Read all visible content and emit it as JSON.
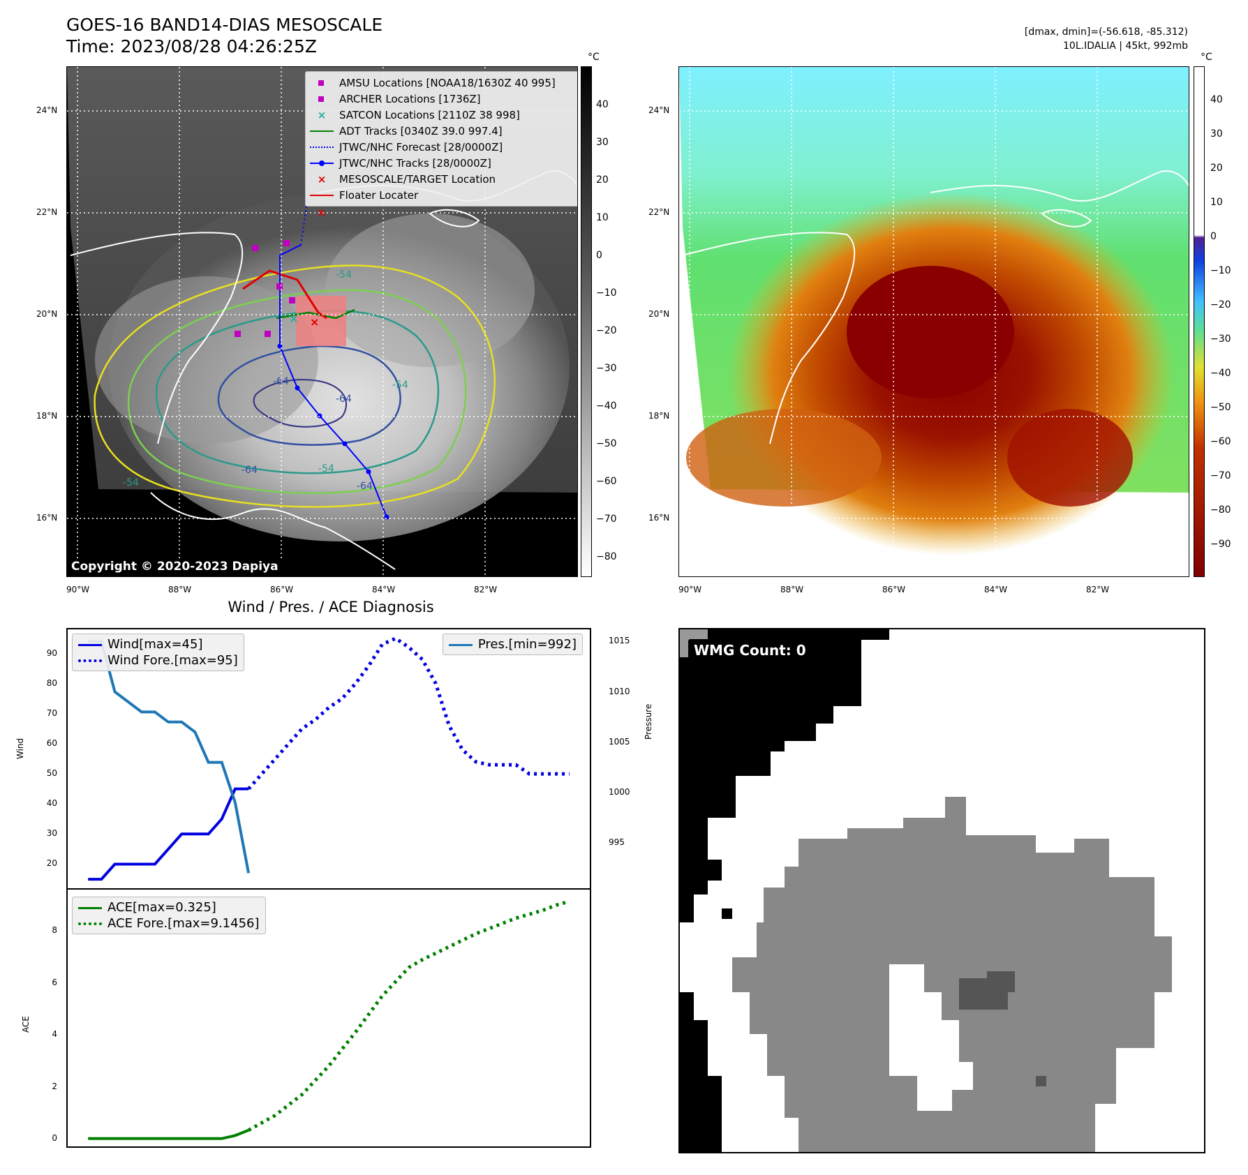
{
  "header": {
    "title_line1": "GOES-16 BAND14-DIAS MESOSCALE",
    "title_line2": "Time: 2023/08/28 04:26:25Z",
    "right_line1": "[dmax, dmin]=(-56.618, -85.312)",
    "right_line2": "10L.IDALIA | 45kt, 992mb"
  },
  "map_panel": {
    "lat_labels": [
      "24°N",
      "22°N",
      "20°N",
      "18°N",
      "16°N"
    ],
    "lon_labels": [
      "90°W",
      "88°W",
      "86°W",
      "84°W",
      "82°W"
    ],
    "copyright": "Copyright © 2020-2023 Dapiya",
    "contour_labels": [
      "-54",
      "-64",
      "-54",
      "-64",
      "-64",
      "-54",
      "-64",
      "-54"
    ],
    "legend": [
      {
        "label": "AMSU Locations [NOAA18/1630Z 40 995]",
        "color": "#c000c0",
        "symbol": "square"
      },
      {
        "label": "ARCHER Locations [1736Z]",
        "color": "#c000c0",
        "symbol": "square"
      },
      {
        "label": "SATCON Locations [2110Z 38 998]",
        "color": "#20b0a0",
        "symbol": "x"
      },
      {
        "label": "ADT Tracks [0340Z 39.0 997.4]",
        "color": "#008000",
        "symbol": "line"
      },
      {
        "label": "JTWC/NHC Forecast [28/0000Z]",
        "color": "#0000ff",
        "symbol": "dotted"
      },
      {
        "label": "JTWC/NHC Tracks [28/0000Z]",
        "color": "#0000ff",
        "symbol": "line-dot"
      },
      {
        "label": "MESOSCALE/TARGET Location",
        "color": "#e00000",
        "symbol": "x"
      },
      {
        "label": "Floater Locater",
        "color": "#e00000",
        "symbol": "line"
      }
    ]
  },
  "colorbar_left": {
    "unit": "°C",
    "ticks": [
      "40",
      "30",
      "20",
      "10",
      "0",
      "−10",
      "−20",
      "−30",
      "−40",
      "−50",
      "−60",
      "−70",
      "−80"
    ]
  },
  "colorbar_right": {
    "unit": "°C",
    "ticks": [
      "40",
      "30",
      "20",
      "10",
      "0",
      "−10",
      "−20",
      "−30",
      "−40",
      "−50",
      "−60",
      "−70",
      "−80",
      "−90"
    ]
  },
  "chart_data": [
    {
      "type": "line",
      "title": "Wind / Pres. / ACE Diagnosis",
      "ylabel": "Wind",
      "y2label": "Pressure",
      "ylim": [
        12,
        98
      ],
      "y2lim": [
        990.5,
        1016.2
      ],
      "yticks": [
        "20",
        "30",
        "40",
        "50",
        "60",
        "70",
        "80",
        "90"
      ],
      "y2ticks": [
        "995",
        "1000",
        "1005",
        "1010",
        "1015"
      ],
      "legend_left": [
        {
          "label": "Wind[max=45]",
          "color": "#0000e0",
          "style": "solid"
        },
        {
          "label": "Wind Fore.[max=95]",
          "color": "#0000e0",
          "style": "dotted"
        }
      ],
      "legend_right": [
        {
          "label": "Pres.[min=992]",
          "color": "#1f77b4",
          "style": "solid"
        }
      ],
      "series": [
        {
          "name": "Wind[max=45]",
          "axis": "left",
          "style": "solid",
          "color": "#0000e0",
          "x": [
            0,
            1,
            2,
            3,
            4,
            5,
            6,
            7,
            8,
            9,
            10,
            11,
            12
          ],
          "values": [
            15,
            15,
            20,
            20,
            20,
            20,
            25,
            30,
            30,
            30,
            35,
            45,
            45
          ]
        },
        {
          "name": "Wind Fore.[max=95]",
          "axis": "left",
          "style": "dotted",
          "color": "#0000e0",
          "x": [
            12,
            13,
            14,
            15,
            16,
            17,
            18,
            19,
            20,
            21,
            22,
            23,
            24,
            25,
            26,
            27,
            28,
            29,
            30,
            31,
            32,
            33,
            34,
            35,
            36
          ],
          "values": [
            45,
            50,
            55,
            60,
            65,
            68,
            72,
            75,
            80,
            86,
            93,
            95,
            92,
            88,
            80,
            66,
            58,
            54,
            53,
            53,
            53,
            50,
            50,
            50,
            50
          ]
        },
        {
          "name": "Pres.[min=992]",
          "axis": "right",
          "style": "solid",
          "color": "#1f77b4",
          "x": [
            0,
            1,
            2,
            3,
            4,
            5,
            6,
            7,
            8,
            9,
            10,
            11,
            12
          ],
          "values": [
            1015,
            1015,
            1010,
            1009,
            1008,
            1008,
            1007,
            1007,
            1006,
            1003,
            1003,
            999,
            992
          ]
        }
      ]
    },
    {
      "type": "line",
      "ylabel": "ACE",
      "ylim": [
        -0.3,
        9.6
      ],
      "yticks": [
        "0",
        "2",
        "4",
        "6",
        "8"
      ],
      "legend": [
        {
          "label": "ACE[max=0.325]",
          "color": "#008000",
          "style": "solid"
        },
        {
          "label": "ACE Fore.[max=9.1456]",
          "color": "#008000",
          "style": "dotted"
        }
      ],
      "series": [
        {
          "name": "ACE[max=0.325]",
          "style": "solid",
          "color": "#008000",
          "x": [
            0,
            2,
            4,
            6,
            8,
            10,
            11,
            12
          ],
          "values": [
            0,
            0,
            0,
            0,
            0,
            0,
            0.12,
            0.325
          ]
        },
        {
          "name": "ACE Fore.[max=9.1456]",
          "style": "dotted",
          "color": "#008000",
          "x": [
            12,
            14,
            16,
            18,
            20,
            22,
            24,
            25,
            26,
            27,
            28,
            29,
            30,
            31,
            32,
            33,
            34,
            35,
            36
          ],
          "values": [
            0.325,
            0.9,
            1.7,
            2.8,
            4.1,
            5.5,
            6.6,
            6.9,
            7.15,
            7.4,
            7.65,
            7.9,
            8.1,
            8.3,
            8.5,
            8.65,
            8.8,
            9.0,
            9.1456
          ]
        }
      ]
    }
  ],
  "wmg_panel": {
    "label": "WMG Count: 0"
  }
}
